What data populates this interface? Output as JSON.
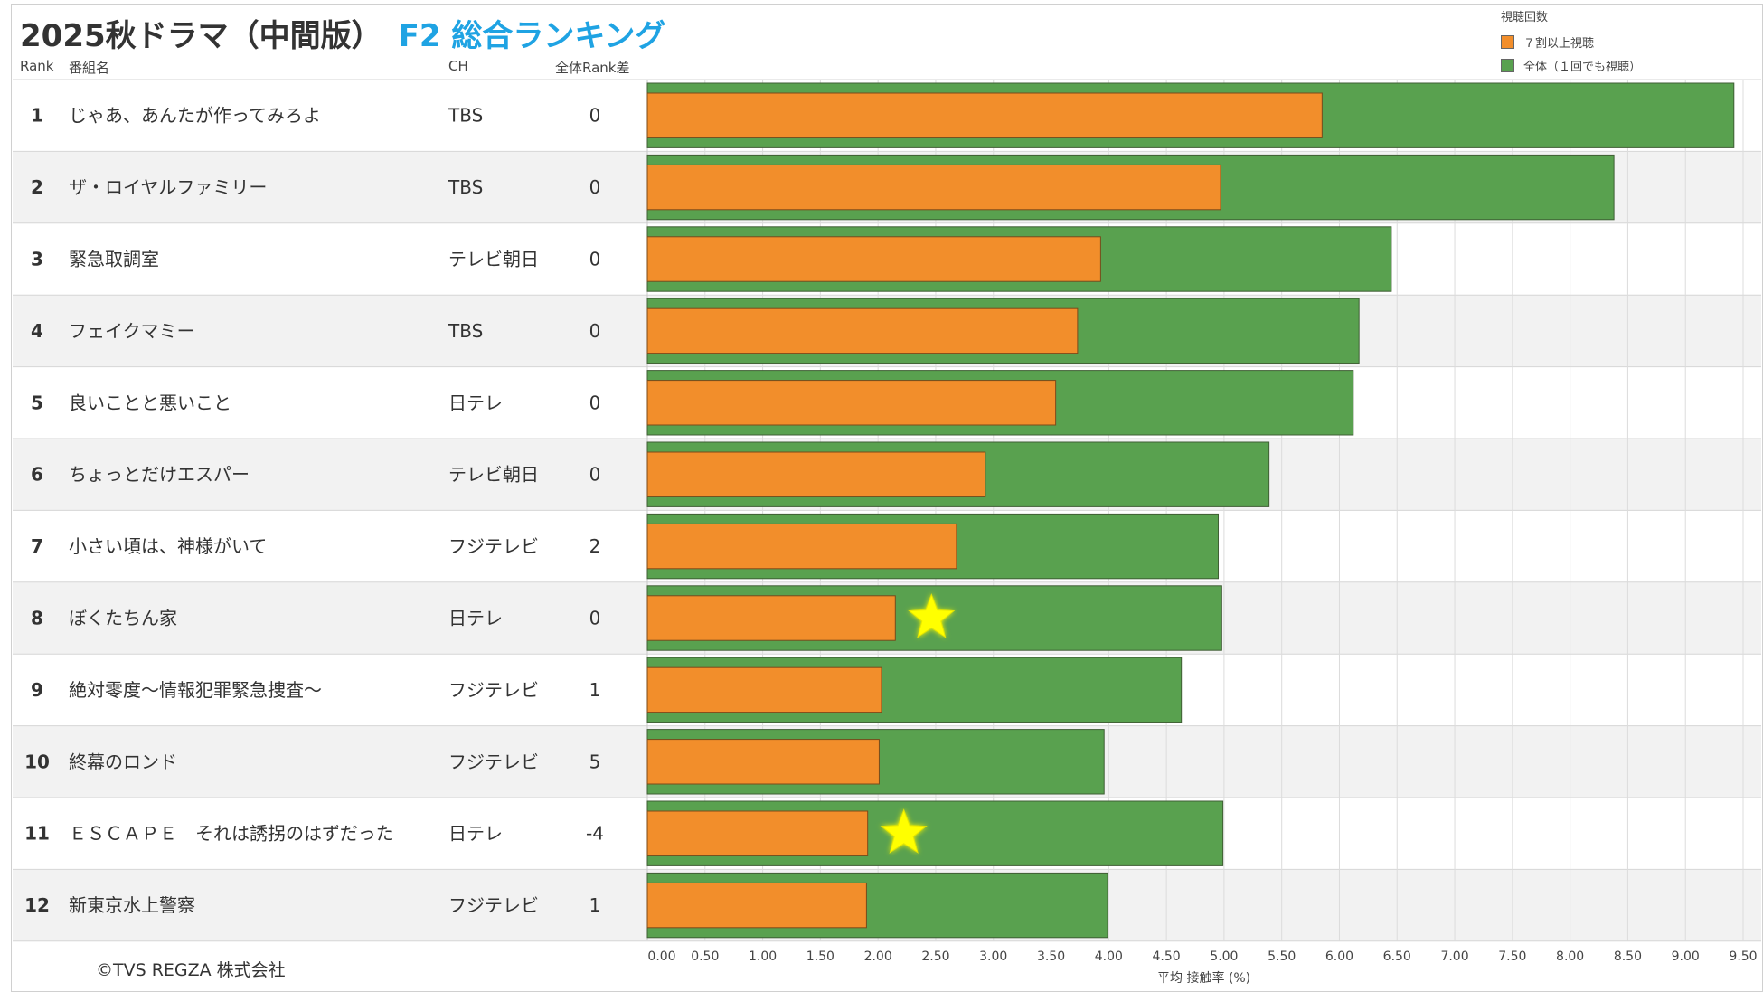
{
  "header": {
    "title_main": "2025秋ドラマ（中間版）",
    "title_sub": "F2 総合ランキング"
  },
  "columns": {
    "rank": "Rank",
    "program": "番組名",
    "channel": "CH",
    "rank_diff": "全体Rank差"
  },
  "legend": {
    "title": "視聴回数",
    "items": [
      {
        "label": "７割以上視聴",
        "color": "#f28e2b"
      },
      {
        "label": "全体（１回でも視聴）",
        "color": "#59a14f"
      }
    ]
  },
  "footer": {
    "copyright": "©TVS REGZA 株式会社"
  },
  "chart_data": {
    "type": "bar",
    "orientation": "horizontal",
    "xlabel": "平均 接触率 (%)",
    "xlim": [
      0,
      9.5
    ],
    "xticks": [
      "0.00",
      "0.50",
      "1.00",
      "1.50",
      "2.00",
      "2.50",
      "3.00",
      "3.50",
      "4.00",
      "4.50",
      "5.00",
      "5.50",
      "6.00",
      "6.50",
      "7.00",
      "7.50",
      "8.00",
      "8.50",
      "9.00",
      "9.50"
    ],
    "grid": true,
    "legend_position": "top-right",
    "categories": [
      "じゃあ、あんたが作ってみろよ",
      "ザ・ロイヤルファミリー",
      "緊急取調室",
      "フェイクマミー",
      "良いことと悪いこと",
      "ちょっとだけエスパー",
      "小さい頃は、神様がいて",
      "ぼくたちん家",
      "絶対零度～情報犯罪緊急捜査～",
      "終幕のロンド",
      "ＥＳＣＡＰＥ　それは誘拐のはずだった",
      "新東京水上警察"
    ],
    "ranks": [
      1,
      2,
      3,
      4,
      5,
      6,
      7,
      8,
      9,
      10,
      11,
      12
    ],
    "channels": [
      "TBS",
      "TBS",
      "テレビ朝日",
      "TBS",
      "日テレ",
      "テレビ朝日",
      "フジテレビ",
      "日テレ",
      "フジテレビ",
      "フジテレビ",
      "日テレ",
      "フジテレビ"
    ],
    "rank_diff": [
      "0",
      "0",
      "0",
      "0",
      "0",
      "0",
      "2",
      "0",
      "1",
      "5",
      "-4",
      "1"
    ],
    "series": [
      {
        "name": "全体（１回でも視聴）",
        "color": "#59a14f",
        "values": [
          9.42,
          8.38,
          6.45,
          6.17,
          6.12,
          5.39,
          4.95,
          4.98,
          4.63,
          3.96,
          4.99,
          3.99
        ]
      },
      {
        "name": "７割以上視聴",
        "color": "#f28e2b",
        "values": [
          5.85,
          4.97,
          3.93,
          3.73,
          3.54,
          2.93,
          2.68,
          2.15,
          2.03,
          2.01,
          1.91,
          1.9
        ]
      }
    ],
    "star_rows": [
      8,
      11
    ]
  }
}
